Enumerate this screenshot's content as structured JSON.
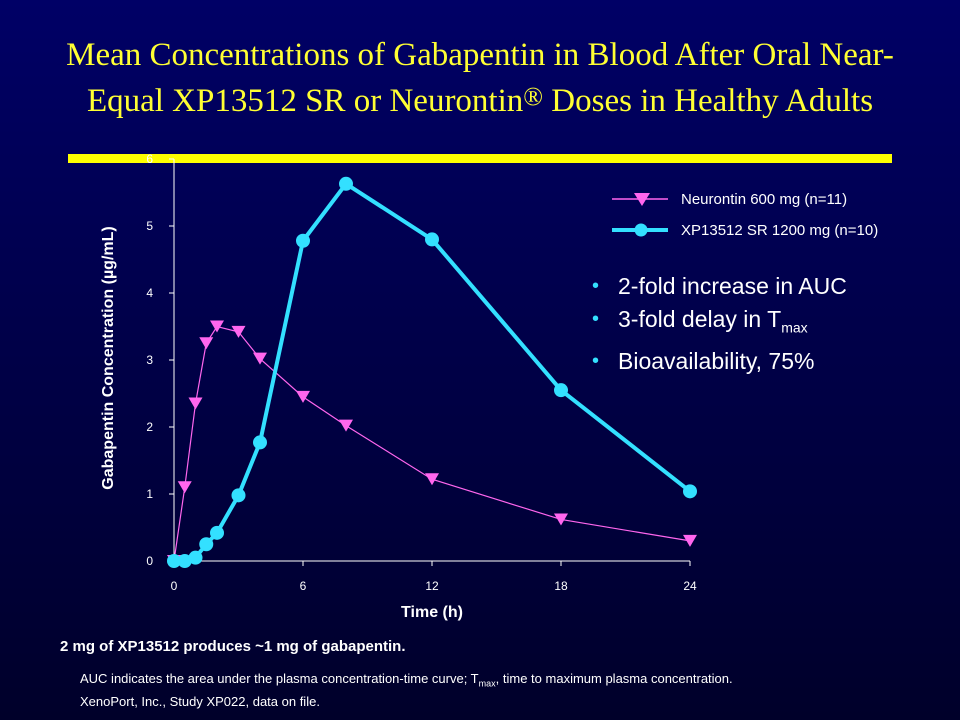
{
  "title": {
    "line1": "Mean Concentrations of Gabapentin in Blood After Oral Near-",
    "line2a": "Equal XP13512 SR or Neurontin",
    "reg": "®",
    "line2b": " Doses in Healthy Adults"
  },
  "bullets": [
    {
      "text": "2-fold increase in AUC",
      "sub": ""
    },
    {
      "text": "3-fold delay in T",
      "sub": "max"
    },
    {
      "text": "Bioavailability, 75%",
      "sub": ""
    }
  ],
  "note": "2 mg of XP13512 produces ~1 mg of gabapentin.",
  "footnote": {
    "part1": "AUC indicates the area under the plasma concentration-time curve; T",
    "sub": "max",
    "part2": ", time to maximum plasma concentration.",
    "line2": "XenoPort, Inc., Study XP022, data on file."
  },
  "colors": {
    "background": "#00004a",
    "title": "#ffff33",
    "bar": "#ffff00",
    "neurontin": "#ff66ee",
    "xp13512": "#33e0ff"
  },
  "chart_data": {
    "type": "line",
    "xlabel": "Time (h)",
    "ylabel": "Gabapentin Concentration (µg/mL)",
    "xlim": [
      0,
      24
    ],
    "ylim": [
      0,
      6
    ],
    "xticks": [
      "0",
      "6",
      "12",
      "18",
      "24"
    ],
    "yticks": [
      "0",
      "1",
      "2",
      "3",
      "4",
      "5",
      "6"
    ],
    "legend_position": "top-right",
    "series": [
      {
        "name": "Neurontin 600 mg (n=11)",
        "marker": "triangle-down",
        "x": [
          0,
          0.5,
          1,
          1.5,
          2,
          3,
          4,
          6,
          8,
          12,
          18,
          24
        ],
        "y": [
          0,
          1.1,
          2.35,
          3.25,
          3.5,
          3.42,
          3.02,
          2.45,
          2.02,
          1.22,
          0.62,
          0.3
        ]
      },
      {
        "name": "XP13512  SR 1200 mg (n=10)",
        "marker": "circle",
        "x": [
          0,
          0.5,
          1,
          1.5,
          2,
          3,
          4,
          6,
          8,
          12,
          18,
          24
        ],
        "y": [
          0,
          0,
          0.05,
          0.25,
          0.42,
          0.98,
          1.77,
          4.78,
          5.63,
          4.8,
          2.55,
          1.04
        ]
      }
    ]
  }
}
